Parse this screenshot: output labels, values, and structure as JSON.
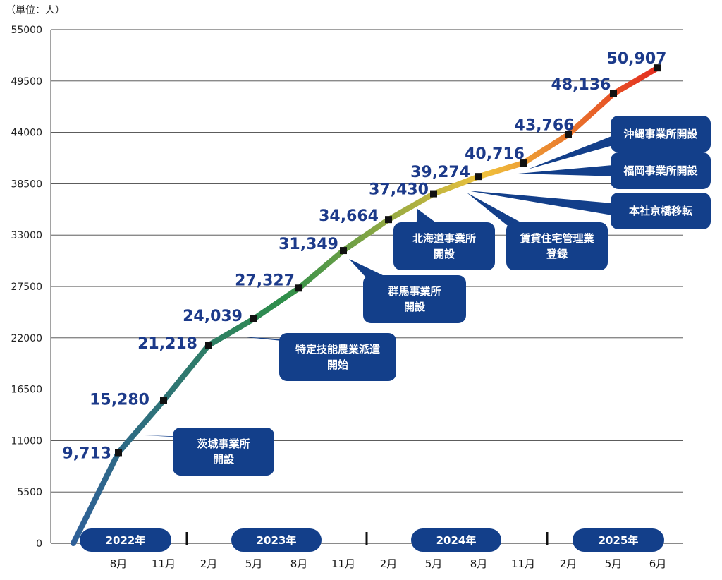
{
  "chart_data": {
    "type": "line",
    "unit_label": "（単位：人）",
    "ylim": [
      0,
      55000
    ],
    "yticks": [
      0,
      5500,
      11000,
      16500,
      22000,
      27500,
      33000,
      38500,
      44000,
      49500,
      55000
    ],
    "grid": true,
    "x_month_labels": [
      "8月",
      "11月",
      "2月",
      "5月",
      "8月",
      "11月",
      "2月",
      "5月",
      "8月",
      "11月",
      "2月",
      "5月",
      "6月"
    ],
    "year_labels": [
      "2022年",
      "2023年",
      "2024年",
      "2025年"
    ],
    "series": [
      {
        "points": [
          {
            "x": "origin",
            "y": 0,
            "label": ""
          },
          {
            "x": "2022年8月",
            "y": 9713,
            "label": "9,713"
          },
          {
            "x": "2022年11月",
            "y": 15280,
            "label": "15,280"
          },
          {
            "x": "2023年2月",
            "y": 21218,
            "label": "21,218"
          },
          {
            "x": "2023年5月",
            "y": 24039,
            "label": "24,039"
          },
          {
            "x": "2023年8月",
            "y": 27327,
            "label": "27,327"
          },
          {
            "x": "2023年11月",
            "y": 31349,
            "label": "31,349"
          },
          {
            "x": "2024年2月",
            "y": 34664,
            "label": "34,664"
          },
          {
            "x": "2024年5月",
            "y": 37430,
            "label": "37,430"
          },
          {
            "x": "2024年8月",
            "y": 39274,
            "label": "39,274"
          },
          {
            "x": "2024年11月",
            "y": 40716,
            "label": "40,716"
          },
          {
            "x": "2025年2月",
            "y": 43766,
            "label": "43,766"
          },
          {
            "x": "2025年5月",
            "y": 48136,
            "label": "48,136"
          },
          {
            "x": "2025年6月",
            "y": 50907,
            "label": "50,907"
          }
        ]
      }
    ],
    "annotations": [
      {
        "lines": [
          "茨城事業所",
          "開設"
        ],
        "point": "2022年8月"
      },
      {
        "lines": [
          "特定技能農業派遣",
          "開始"
        ],
        "point": "2023年5月"
      },
      {
        "lines": [
          "群馬事業所",
          "開設"
        ],
        "point": "2023年11月"
      },
      {
        "lines": [
          "北海道事業所",
          "開設"
        ],
        "point": "2024年2月"
      },
      {
        "lines": [
          "賃貸住宅管理業",
          "登録"
        ],
        "point": "2024年8月"
      },
      {
        "lines": [
          "本社京橋移転"
        ],
        "point": "2024年8月"
      },
      {
        "lines": [
          "福岡事業所開設"
        ],
        "point": "2024年11月"
      },
      {
        "lines": [
          "沖縄事業所開設"
        ],
        "point": "2024年11月"
      }
    ],
    "colors": {
      "grid": "#444444",
      "annotation": "#133f8a",
      "label": "#1c3a8a",
      "gradient": [
        "#2e5f98",
        "#2e8f4a",
        "#f0c23c",
        "#e32a1e"
      ]
    }
  }
}
